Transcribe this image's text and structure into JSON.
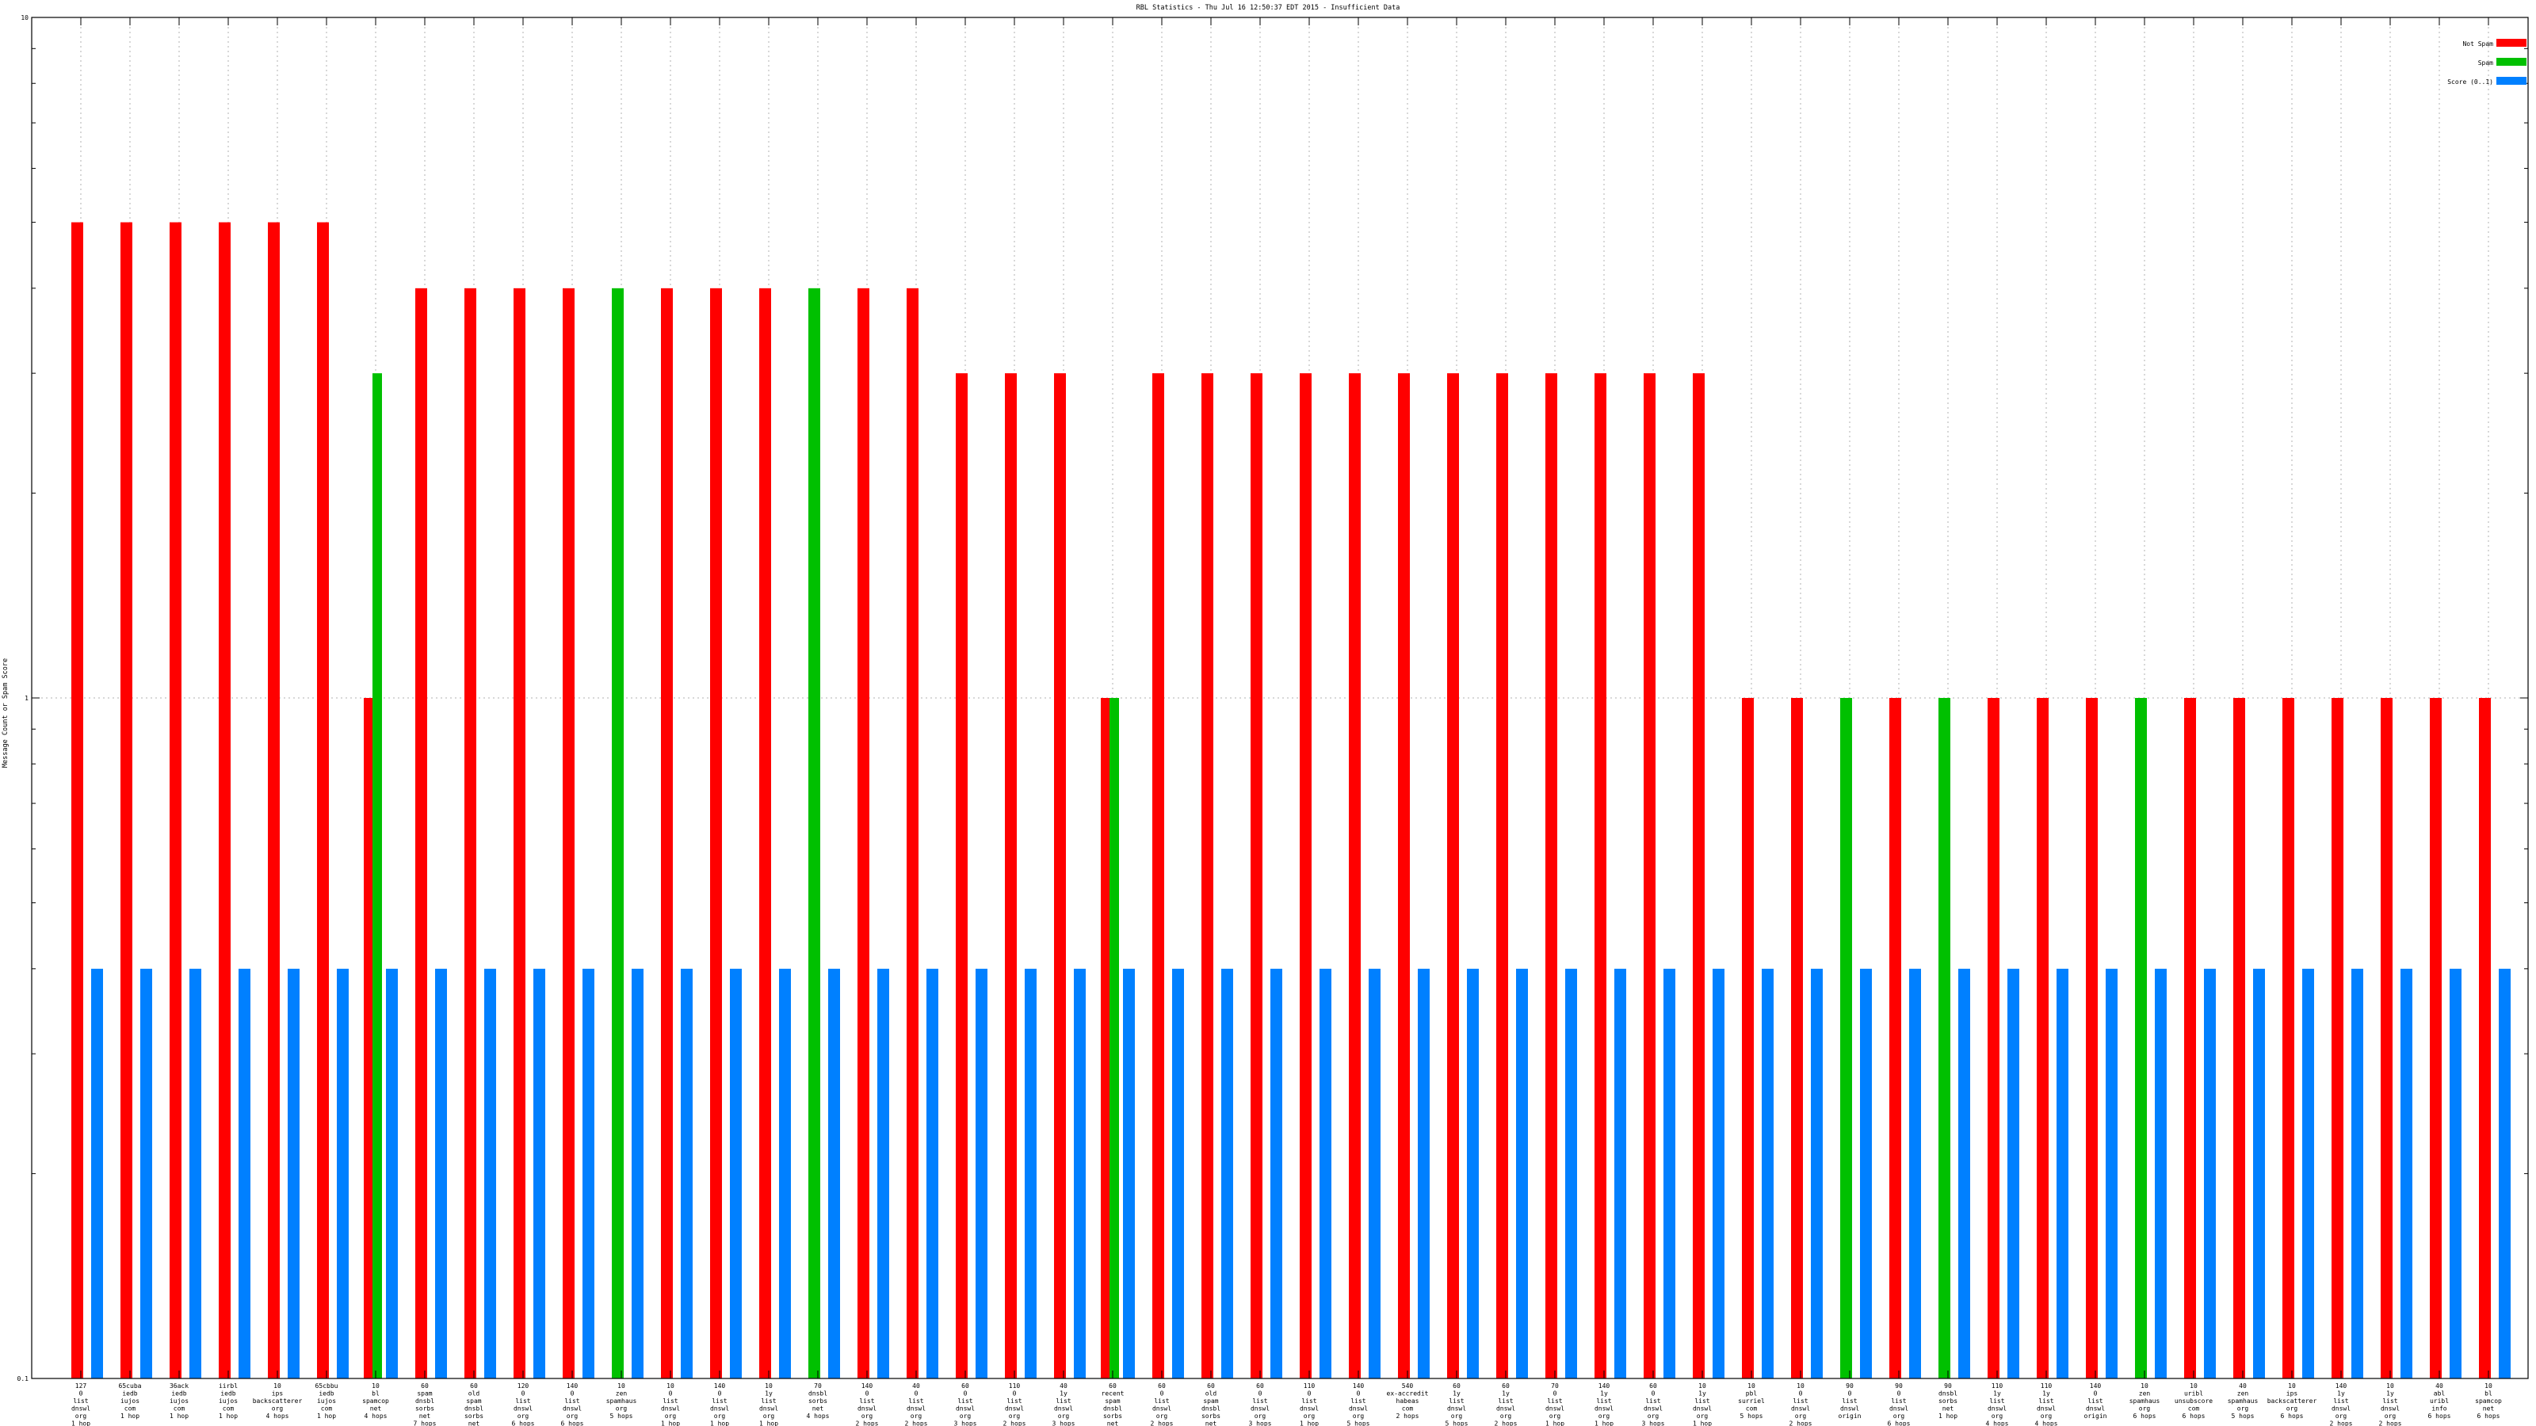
{
  "chart_data": {
    "type": "bar",
    "title": "RBL Statistics - Thu Jul 16 12:50:37 EDT 2015 - Insufficient Data",
    "ylabel": "Message Count or Spam Score",
    "xlabel": "",
    "y_scale": "log",
    "ylim": [
      0.1,
      10
    ],
    "y_ticks": [
      {
        "value": 0.1,
        "label": "0.1"
      },
      {
        "value": 1,
        "label": "1"
      },
      {
        "value": 10,
        "label": "10"
      }
    ],
    "grid": "vertical dotted lines at each category, horizontal dotted line at 1",
    "legend_position": "top-right",
    "colors": {
      "not_spam": "#ff0000",
      "spam": "#00c000",
      "score": "#0080ff"
    },
    "series": [
      {
        "name": "Not Spam"
      },
      {
        "name": "Spam"
      },
      {
        "name": "Score (0..1)"
      }
    ],
    "categories": [
      {
        "label": [
          "127",
          "0",
          "list",
          "dnswl",
          "org",
          "1 hop"
        ],
        "not_spam": 5,
        "spam": null,
        "score": 0.4
      },
      {
        "label": [
          "65cuba",
          "iedb",
          "iujos",
          "com",
          "1 hop"
        ],
        "not_spam": 5,
        "spam": null,
        "score": 0.4
      },
      {
        "label": [
          "36ack",
          "iedb",
          "iujos",
          "com",
          "1 hop"
        ],
        "not_spam": 5,
        "spam": null,
        "score": 0.4
      },
      {
        "label": [
          "iirbl",
          "iedb",
          "iujos",
          "com",
          "1 hop"
        ],
        "not_spam": 5,
        "spam": null,
        "score": 0.4
      },
      {
        "label": [
          "10",
          "ips",
          "backscatterer",
          "org",
          "4 hops"
        ],
        "not_spam": 5,
        "spam": null,
        "score": 0.4
      },
      {
        "label": [
          "65cbbu",
          "iedb",
          "iujos",
          "com",
          "1 hop"
        ],
        "not_spam": 5,
        "spam": null,
        "score": 0.4
      },
      {
        "label": [
          "10",
          "bl",
          "spamcop",
          "net",
          "4 hops"
        ],
        "not_spam": 1,
        "spam": 3,
        "score": 0.4
      },
      {
        "label": [
          "60",
          "spam",
          "dnsbl",
          "sorbs",
          "net",
          "7 hops"
        ],
        "not_spam": 4,
        "spam": null,
        "score": 0.4
      },
      {
        "label": [
          "60",
          "old",
          "spam",
          "dnsbl",
          "sorbs",
          "net",
          "7 hops"
        ],
        "not_spam": 4,
        "spam": null,
        "score": 0.4
      },
      {
        "label": [
          "120",
          "0",
          "list",
          "dnswl",
          "org",
          "6 hops"
        ],
        "not_spam": 4,
        "spam": null,
        "score": 0.4
      },
      {
        "label": [
          "140",
          "0",
          "list",
          "dnswl",
          "org",
          "6 hops"
        ],
        "not_spam": 4,
        "spam": null,
        "score": 0.4
      },
      {
        "label": [
          "10",
          "zen",
          "spamhaus",
          "org",
          "5 hops"
        ],
        "not_spam": null,
        "spam": 4,
        "score": 0.4
      },
      {
        "label": [
          "10",
          "0",
          "list",
          "dnswl",
          "org",
          "1 hop"
        ],
        "not_spam": 4,
        "spam": null,
        "score": 0.4
      },
      {
        "label": [
          "140",
          "0",
          "list",
          "dnswl",
          "org",
          "1 hop"
        ],
        "not_spam": 4,
        "spam": null,
        "score": 0.4
      },
      {
        "label": [
          "10",
          "1y",
          "list",
          "dnswl",
          "org",
          "1 hop"
        ],
        "not_spam": 4,
        "spam": null,
        "score": 0.4
      },
      {
        "label": [
          "70",
          "dnsbl",
          "sorbs",
          "net",
          "4 hops"
        ],
        "not_spam": null,
        "spam": 4,
        "score": 0.4
      },
      {
        "label": [
          "140",
          "0",
          "list",
          "dnswl",
          "org",
          "2 hops"
        ],
        "not_spam": 4,
        "spam": null,
        "score": 0.4
      },
      {
        "label": [
          "40",
          "0",
          "list",
          "dnswl",
          "org",
          "2 hops"
        ],
        "not_spam": 4,
        "spam": null,
        "score": 0.4
      },
      {
        "label": [
          "60",
          "0",
          "list",
          "dnswl",
          "org",
          "3 hops"
        ],
        "not_spam": 3,
        "spam": null,
        "score": 0.4
      },
      {
        "label": [
          "110",
          "0",
          "list",
          "dnswl",
          "org",
          "2 hops"
        ],
        "not_spam": 3,
        "spam": null,
        "score": 0.4
      },
      {
        "label": [
          "40",
          "1y",
          "list",
          "dnswl",
          "org",
          "3 hops"
        ],
        "not_spam": 3,
        "spam": null,
        "score": 0.4
      },
      {
        "label": [
          "60",
          "recent",
          "spam",
          "dnsbl",
          "sorbs",
          "net",
          "4 hops"
        ],
        "not_spam": 1,
        "spam": 1,
        "score": 0.4
      },
      {
        "label": [
          "60",
          "0",
          "list",
          "dnswl",
          "org",
          "2 hops"
        ],
        "not_spam": 3,
        "spam": null,
        "score": 0.4
      },
      {
        "label": [
          "60",
          "old",
          "spam",
          "dnsbl",
          "sorbs",
          "net",
          "6 hops"
        ],
        "not_spam": 3,
        "spam": null,
        "score": 0.4
      },
      {
        "label": [
          "60",
          "0",
          "list",
          "dnswl",
          "org",
          "3 hops"
        ],
        "not_spam": 3,
        "spam": null,
        "score": 0.4
      },
      {
        "label": [
          "110",
          "0",
          "list",
          "dnswl",
          "org",
          "1 hop"
        ],
        "not_spam": 3,
        "spam": null,
        "score": 0.4
      },
      {
        "label": [
          "140",
          "0",
          "list",
          "dnswl",
          "org",
          "5 hops"
        ],
        "not_spam": 3,
        "spam": null,
        "score": 0.4
      },
      {
        "label": [
          "540",
          "ex-accredit",
          "habeas",
          "com",
          "2 hops"
        ],
        "not_spam": 3,
        "spam": null,
        "score": 0.4
      },
      {
        "label": [
          "60",
          "1y",
          "list",
          "dnswl",
          "org",
          "5 hops"
        ],
        "not_spam": 3,
        "spam": null,
        "score": 0.4
      },
      {
        "label": [
          "60",
          "1y",
          "list",
          "dnswl",
          "org",
          "2 hops"
        ],
        "not_spam": 3,
        "spam": null,
        "score": 0.4
      },
      {
        "label": [
          "70",
          "0",
          "list",
          "dnswl",
          "org",
          "1 hop"
        ],
        "not_spam": 3,
        "spam": null,
        "score": 0.4
      },
      {
        "label": [
          "140",
          "1y",
          "list",
          "dnswl",
          "org",
          "1 hop"
        ],
        "not_spam": 3,
        "spam": null,
        "score": 0.4
      },
      {
        "label": [
          "60",
          "0",
          "list",
          "dnswl",
          "org",
          "3 hops"
        ],
        "not_spam": 3,
        "spam": null,
        "score": 0.4
      },
      {
        "label": [
          "10",
          "1y",
          "list",
          "dnswl",
          "org",
          "1 hop"
        ],
        "not_spam": 3,
        "spam": null,
        "score": 0.4
      },
      {
        "label": [
          "10",
          "pbl",
          "surriel",
          "com",
          "5 hops"
        ],
        "not_spam": 1,
        "spam": null,
        "score": 0.4
      },
      {
        "label": [
          "10",
          "0",
          "list",
          "dnswl",
          "org",
          "2 hops"
        ],
        "not_spam": 1,
        "spam": null,
        "score": 0.4
      },
      {
        "label": [
          "90",
          "0",
          "list",
          "dnswl",
          "origin"
        ],
        "not_spam": null,
        "spam": 1,
        "score": 0.4
      },
      {
        "label": [
          "90",
          "0",
          "list",
          "dnswl",
          "org",
          "6 hops"
        ],
        "not_spam": 1,
        "spam": null,
        "score": 0.4
      },
      {
        "label": [
          "90",
          "dnsbl",
          "sorbs",
          "net",
          "1 hop"
        ],
        "not_spam": null,
        "spam": 1,
        "score": 0.4
      },
      {
        "label": [
          "110",
          "1y",
          "list",
          "dnswl",
          "org",
          "4 hops"
        ],
        "not_spam": 1,
        "spam": null,
        "score": 0.4
      },
      {
        "label": [
          "110",
          "1y",
          "list",
          "dnswl",
          "org",
          "4 hops"
        ],
        "not_spam": 1,
        "spam": null,
        "score": 0.4
      },
      {
        "label": [
          "140",
          "0",
          "list",
          "dnswl",
          "origin"
        ],
        "not_spam": 1,
        "spam": null,
        "score": 0.4
      },
      {
        "label": [
          "10",
          "zen",
          "spamhaus",
          "org",
          "6 hops"
        ],
        "not_spam": null,
        "spam": 1,
        "score": 0.4
      },
      {
        "label": [
          "10",
          "uribl",
          "unsubscore",
          "com",
          "6 hops"
        ],
        "not_spam": 1,
        "spam": null,
        "score": 0.4
      },
      {
        "label": [
          "40",
          "zen",
          "spamhaus",
          "org",
          "5 hops"
        ],
        "not_spam": 1,
        "spam": null,
        "score": 0.4
      },
      {
        "label": [
          "10",
          "ips",
          "backscatterer",
          "org",
          "6 hops"
        ],
        "not_spam": 1,
        "spam": null,
        "score": 0.4
      },
      {
        "label": [
          "140",
          "1y",
          "list",
          "dnswl",
          "org",
          "2 hops"
        ],
        "not_spam": 1,
        "spam": null,
        "score": 0.4
      },
      {
        "label": [
          "10",
          "1y",
          "list",
          "dnswl",
          "org",
          "2 hops"
        ],
        "not_spam": 1,
        "spam": null,
        "score": 0.4
      },
      {
        "label": [
          "40",
          "abl",
          "uribl",
          "info",
          "6 hops"
        ],
        "not_spam": 1,
        "spam": null,
        "score": 0.4
      },
      {
        "label": [
          "10",
          "bl",
          "spamcop",
          "net",
          "6 hops"
        ],
        "not_spam": 1,
        "spam": null,
        "score": 0.4
      }
    ]
  }
}
